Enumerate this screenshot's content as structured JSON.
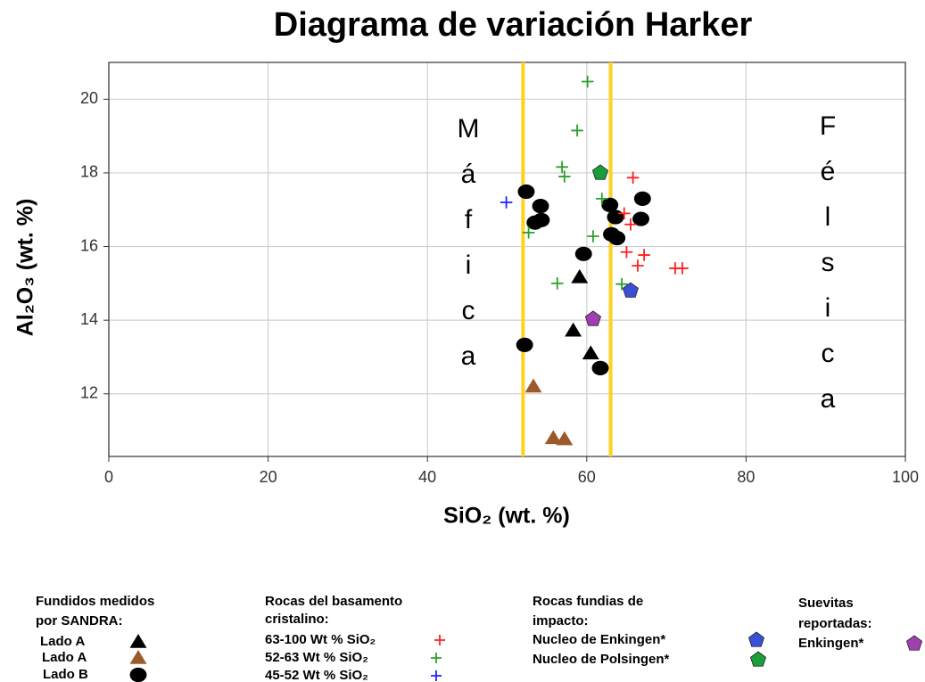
{
  "chart_data": {
    "type": "scatter",
    "title": "Diagrama de variación Harker",
    "xlabel": "SiO₂ (wt. %)",
    "ylabel": "Al₂O₃ (wt. %)",
    "xlim": [
      0,
      100
    ],
    "ylim": [
      10.3,
      21
    ],
    "xticks": [
      0,
      20,
      40,
      60,
      80,
      100
    ],
    "yticks": [
      12,
      14,
      16,
      18,
      20
    ],
    "grid": true,
    "vlines": {
      "color": "#ffd21f",
      "values": [
        52,
        63
      ]
    },
    "annotations": [
      "Máfica",
      "Félsica"
    ],
    "groups": [
      {
        "title": [
          "Fundidos medidos",
          "por SANDRA:"
        ],
        "series": [
          {
            "name": "Lado A",
            "color": "#000000",
            "marker": "triangle",
            "x": [
              59.1,
              58.3,
              60.5
            ],
            "y": [
              15.17,
              13.72,
              13.1
            ]
          },
          {
            "name": "Lado A",
            "color": "#9c5a2c",
            "marker": "triangle",
            "x": [
              53.3,
              55.8,
              57.2
            ],
            "y": [
              12.2,
              10.8,
              10.77
            ]
          },
          {
            "name": "Lado B",
            "color": "#000000",
            "marker": "circle",
            "x": [
              52.4,
              54.2,
              53.5,
              54.3,
              59.6,
              52.2,
              61.7,
              62.9,
              63.6,
              67,
              66.8,
              63.1,
              63.8
            ],
            "y": [
              17.49,
              17.1,
              16.65,
              16.72,
              15.8,
              13.33,
              12.7,
              17.13,
              16.8,
              17.3,
              16.75,
              16.33,
              16.23
            ]
          }
        ]
      },
      {
        "title": [
          "Rocas del basamento",
          "cristalino:"
        ],
        "series": [
          {
            "name": "63-100 Wt % SiO₂",
            "color": "#ff2020",
            "marker": "plus",
            "x": [
              65.8,
              64.7,
              65.5,
              65,
              67.2,
              66.4,
              71.1,
              72
            ],
            "y": [
              17.87,
              16.9,
              16.6,
              15.85,
              15.77,
              15.48,
              15.41,
              15.41
            ]
          },
          {
            "name": "52-63 Wt % SiO₂",
            "color": "#2ca02c",
            "marker": "plus",
            "x": [
              60.1,
              58.8,
              56.9,
              57.2,
              61.9,
              52.7,
              60.8,
              56.3,
              64.4
            ],
            "y": [
              20.48,
              19.15,
              18.16,
              17.9,
              17.3,
              16.38,
              16.28,
              15,
              14.98
            ]
          },
          {
            "name": "45-52 Wt % SiO₂",
            "color": "#2020ff",
            "marker": "plus",
            "x": [
              49.9
            ],
            "y": [
              17.2
            ]
          }
        ]
      },
      {
        "title": [
          "Rocas fundias de",
          "impacto:"
        ],
        "series": [
          {
            "name": "Nucleo de Enkingen*",
            "color": "#3b4fd6",
            "marker": "pentagon",
            "x": [
              65.5
            ],
            "y": [
              14.8
            ]
          },
          {
            "name": "Nucleo de Polsingen*",
            "color": "#1a9e3a",
            "marker": "pentagon",
            "x": [
              61.7
            ],
            "y": [
              18
            ]
          }
        ]
      },
      {
        "title": [
          "Suevitas",
          "reportadas:"
        ],
        "series": [
          {
            "name": "Enkingen*",
            "color": "#a040b0",
            "marker": "pentagon",
            "x": [
              60.8
            ],
            "y": [
              14.03
            ]
          }
        ]
      }
    ]
  }
}
